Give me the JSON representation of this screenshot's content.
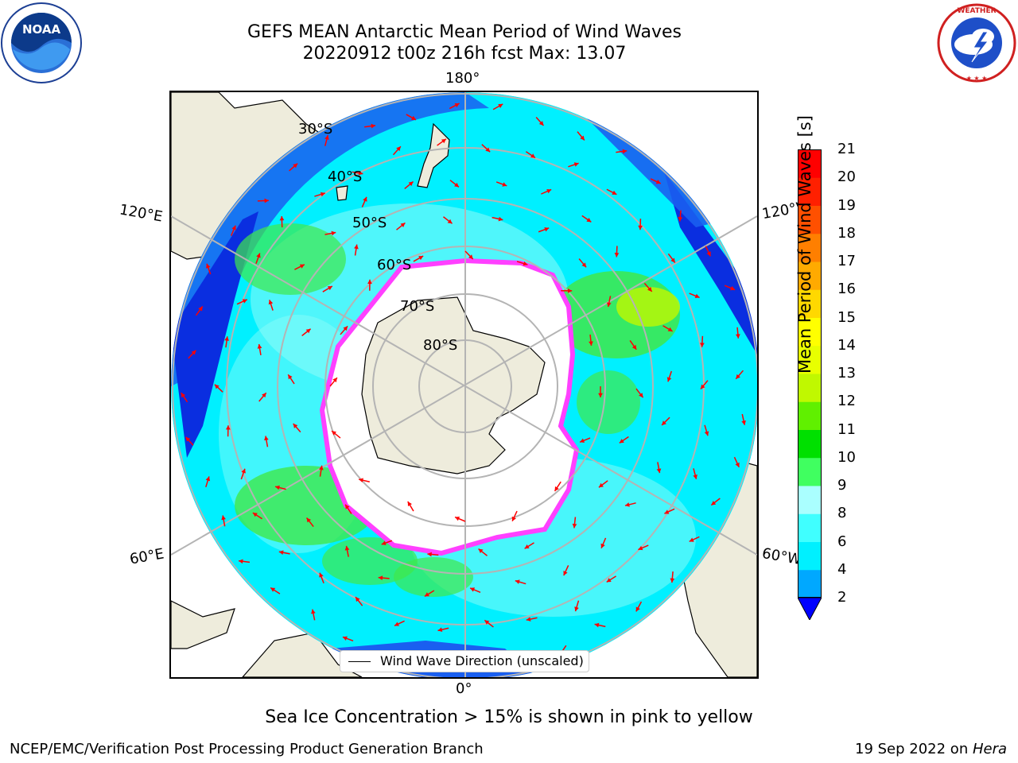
{
  "header": {
    "title_line1": "GEFS MEAN Antarctic Mean Period of Wind Waves",
    "title_line2": "20220912 t00z 216h fcst   Max: 13.07"
  },
  "logos": {
    "noaa_text": "NOAA",
    "noaa_ring_text": "NATIONAL OCEANIC AND ATMOSPHERIC ADMINISTRATION · U.S. DEPARTMENT OF COMMERCE",
    "nws_ring_text": "NATIONAL WEATHER SERVICE"
  },
  "map": {
    "projection": "south-polar-stereographic",
    "lon_labels": {
      "top": "180°",
      "bottom": "0°",
      "upper_left": "120°E",
      "upper_right": "120°W",
      "lower_left": "60°E",
      "lower_right": "60°W"
    },
    "lat_labels": [
      "30°S",
      "40°S",
      "50°S",
      "60°S",
      "70°S",
      "80°S"
    ],
    "legend_label": "Wind Wave Direction (unscaled)",
    "colors": {
      "land": "#eeecdc",
      "ocean_deep": "#1a5ff0",
      "ocean_cyan": "#00f0ff",
      "ocean_light": "#90fcf8",
      "wave_green": "#40e84a",
      "sea_ice": "#ff40ff",
      "arrow": "#ff0000",
      "grid": "#b4b4b4"
    }
  },
  "colorbar": {
    "label": "Mean Period of Wind Waves [s]",
    "ticks": [
      "2",
      "4",
      "6",
      "8",
      "9",
      "10",
      "11",
      "12",
      "13",
      "14",
      "15",
      "16",
      "17",
      "18",
      "19",
      "20",
      "21"
    ],
    "colors": [
      "#0060ff",
      "#00a8ff",
      "#00f0ff",
      "#40ffff",
      "#aaffff",
      "#40ff60",
      "#00e000",
      "#60f000",
      "#c0f800",
      "#e8ff00",
      "#ffff00",
      "#ffd800",
      "#ffaa00",
      "#ff7f00",
      "#ff5000",
      "#ff2000",
      "#ff0000"
    ],
    "extend_color": "#0000ff"
  },
  "note": "Sea Ice Concentration > 15% is shown in pink to yellow",
  "footer": {
    "left": "NCEP/EMC/Verification Post Processing Product Generation Branch",
    "right_prefix": "19 Sep 2022 on ",
    "right_host": "Hera"
  }
}
